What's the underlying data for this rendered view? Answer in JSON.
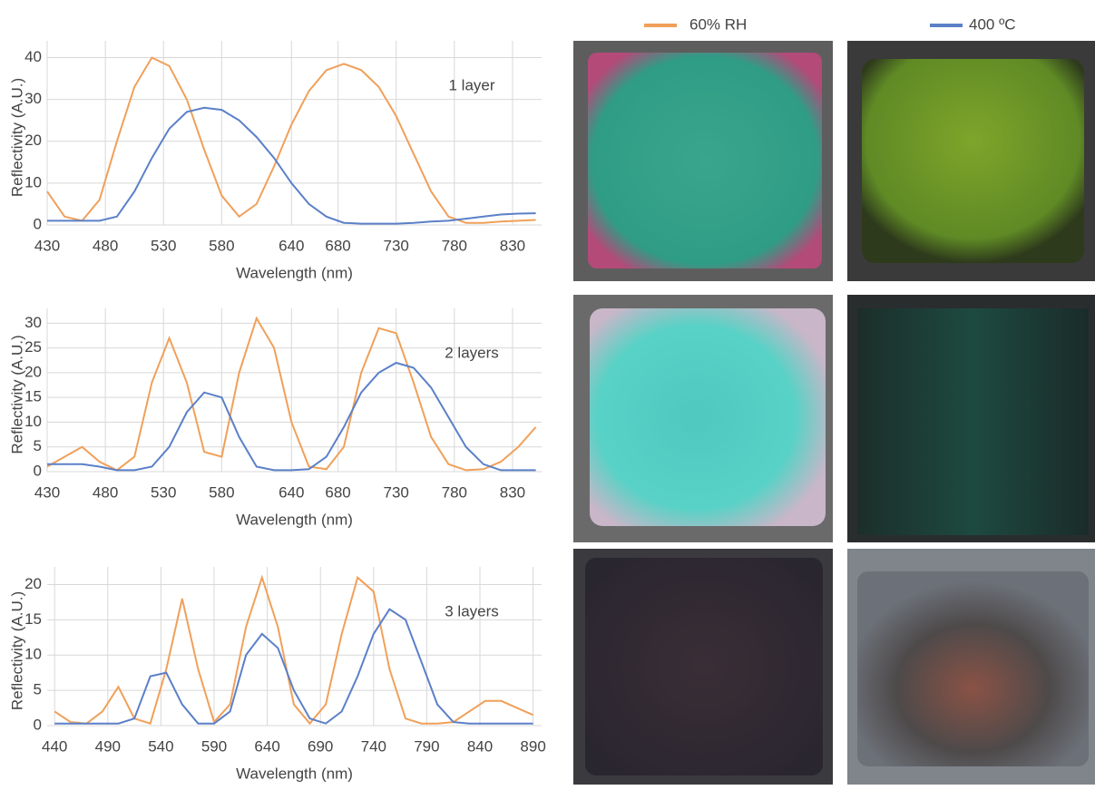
{
  "chart_data": [
    {
      "type": "line",
      "annotation": "1 layer",
      "xlabel": "Wavelength (nm)",
      "ylabel": "Reflectivity (A.U.)",
      "x": [
        430,
        445,
        460,
        475,
        490,
        505,
        520,
        535,
        550,
        565,
        580,
        595,
        610,
        625,
        640,
        655,
        670,
        685,
        700,
        715,
        730,
        745,
        760,
        775,
        790,
        805,
        820,
        835,
        850
      ],
      "series": [
        {
          "name": "60% RH",
          "color": "#f0a05a",
          "values": [
            8,
            2,
            1,
            6,
            20,
            33,
            40,
            38,
            30,
            18,
            7,
            2,
            5,
            14,
            24,
            32,
            37,
            38.5,
            37,
            33,
            26,
            17,
            8,
            2,
            0.5,
            0.5,
            0.8,
            1,
            1.2
          ]
        },
        {
          "name": "400 ºC",
          "color": "#5b80c8",
          "values": [
            1,
            1,
            1,
            1,
            2,
            8,
            16,
            23,
            27,
            28,
            27.5,
            25,
            21,
            16,
            10,
            5,
            2,
            0.5,
            0.3,
            0.3,
            0.3,
            0.5,
            0.8,
            1,
            1.5,
            2,
            2.5,
            2.7,
            2.8
          ]
        }
      ],
      "xlim": [
        430,
        855
      ],
      "xticks": [
        430,
        480,
        530,
        580,
        640,
        680,
        730,
        780,
        830
      ],
      "ylim": [
        0,
        44
      ],
      "yticks": [
        0,
        10,
        20,
        30,
        40
      ],
      "grid": true
    },
    {
      "type": "line",
      "annotation": "2 layers",
      "xlabel": "Wavelength (nm)",
      "ylabel": "Reflectivity (A.U.)",
      "x": [
        430,
        445,
        460,
        475,
        490,
        505,
        520,
        535,
        550,
        565,
        580,
        595,
        610,
        625,
        640,
        655,
        670,
        685,
        700,
        715,
        730,
        745,
        760,
        775,
        790,
        805,
        820,
        835,
        850
      ],
      "series": [
        {
          "color": "#f0a05a",
          "values": [
            1,
            3,
            5,
            2,
            0.3,
            3,
            18,
            27,
            18,
            4,
            3,
            20,
            31,
            25,
            10,
            1,
            0.5,
            5,
            20,
            29,
            28,
            18,
            7,
            1.5,
            0.3,
            0.5,
            2,
            5,
            9
          ]
        },
        {
          "color": "#5b80c8",
          "values": [
            1.5,
            1.5,
            1.5,
            1,
            0.3,
            0.3,
            1,
            5,
            12,
            16,
            15,
            7,
            1,
            0.3,
            0.3,
            0.5,
            3,
            9,
            16,
            20,
            22,
            21,
            17,
            11,
            5,
            1.5,
            0.3,
            0.3,
            0.3
          ]
        }
      ],
      "xlim": [
        430,
        855
      ],
      "xticks": [
        430,
        480,
        530,
        580,
        640,
        680,
        730,
        780,
        830
      ],
      "ylim": [
        0,
        33
      ],
      "yticks": [
        0,
        5,
        10,
        15,
        20,
        25,
        30
      ],
      "grid": true
    },
    {
      "type": "line",
      "annotation": "3 layers",
      "xlabel": "Wavelength (nm)",
      "ylabel": "Reflectivity (A.U.)",
      "x": [
        440,
        455,
        470,
        485,
        500,
        515,
        530,
        545,
        560,
        575,
        590,
        605,
        620,
        635,
        650,
        665,
        680,
        695,
        710,
        725,
        740,
        755,
        770,
        785,
        800,
        815,
        830,
        845,
        860,
        875,
        890
      ],
      "series": [
        {
          "color": "#f0a05a",
          "values": [
            2,
            0.5,
            0.3,
            2,
            5.5,
            1,
            0.3,
            8,
            18,
            8,
            0.5,
            3,
            14,
            21,
            14,
            3,
            0.3,
            3,
            13,
            21,
            19,
            8,
            1,
            0.3,
            0.3,
            0.5,
            2,
            3.5,
            3.5,
            2.5,
            1.5
          ]
        },
        {
          "color": "#5b80c8",
          "values": [
            0.3,
            0.3,
            0.3,
            0.3,
            0.3,
            1,
            7,
            7.5,
            3,
            0.3,
            0.3,
            2,
            10,
            13,
            11,
            5,
            1,
            0.3,
            2,
            7,
            13,
            16.5,
            15,
            9,
            3,
            0.5,
            0.3,
            0.3,
            0.3,
            0.3,
            0.3
          ]
        }
      ],
      "xlim": [
        433,
        898
      ],
      "xticks": [
        440,
        490,
        540,
        590,
        640,
        690,
        740,
        790,
        840,
        890
      ],
      "ylim": [
        0,
        22.5
      ],
      "yticks": [
        0,
        5,
        10,
        15,
        20
      ],
      "grid": true
    }
  ]
}
